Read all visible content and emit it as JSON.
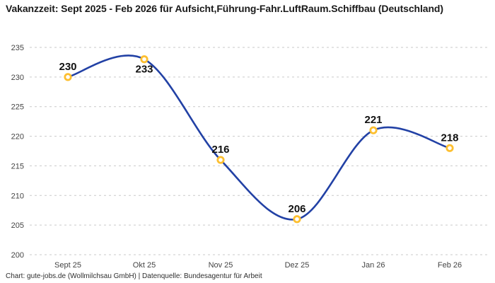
{
  "title": "Vakanzzeit: Sept 2025 - Feb 2026 für Aufsicht,Führung-Fahr.LuftRaum.Schiffbau (Deutschland)",
  "footer": "Chart: gute-jobs.de (Wollmilchsau GmbH) | Datenquelle: Bundesagentur für Arbeit",
  "colors": {
    "line": "#2241a5",
    "marker_ring": "#fdbf2f",
    "marker_fill": "#ffffff",
    "grid": "#c9c9c9",
    "tick_text": "#444444",
    "value_text": "#111111"
  },
  "chart_data": {
    "type": "line",
    "title": "Vakanzzeit: Sept 2025 - Feb 2026 für Aufsicht,Führung-Fahr.LuftRaum.Schiffbau (Deutschland)",
    "categories": [
      "Sept 25",
      "Okt 25",
      "Nov 25",
      "Dez 25",
      "Jan 26",
      "Feb 26"
    ],
    "values": [
      230,
      233,
      216,
      206,
      221,
      218
    ],
    "value_label_positions": [
      "above",
      "below",
      "above",
      "above",
      "above",
      "above"
    ],
    "xlabel": "",
    "ylabel": "",
    "ylim": [
      200,
      235
    ],
    "ytick_step": 5,
    "yticks": [
      200,
      205,
      210,
      215,
      220,
      225,
      230,
      235
    ],
    "grid": "horizontal-dashed",
    "legend_position": "none",
    "line_style": "smooth-spline",
    "marker_style": "open-circle-gold",
    "source": "Chart: gute-jobs.de (Wollmilchsau GmbH) | Datenquelle: Bundesagentur für Arbeit"
  }
}
